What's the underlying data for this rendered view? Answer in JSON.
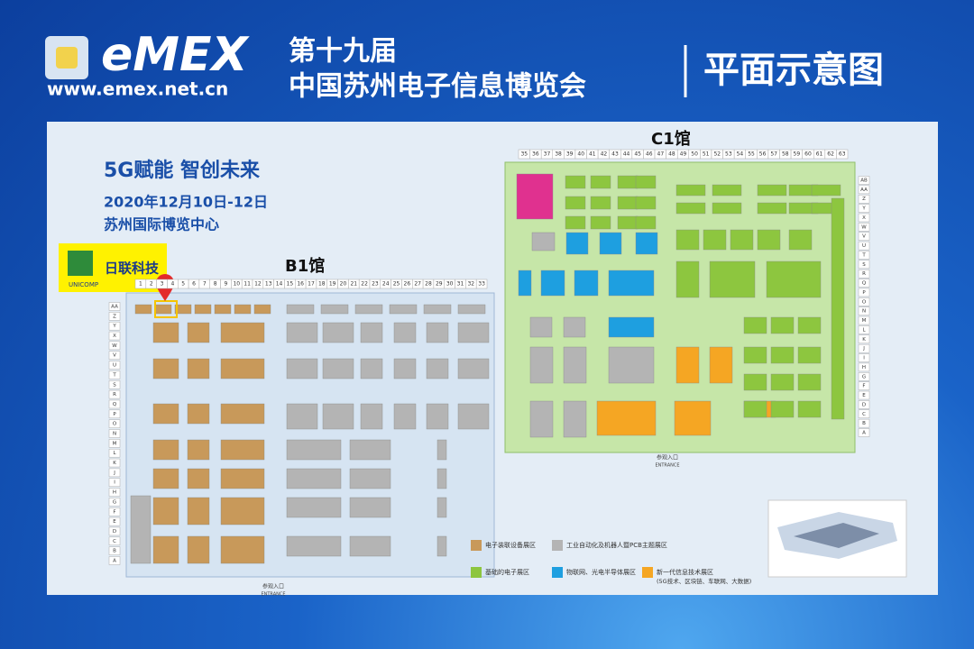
{
  "header": {
    "brand": "eMEX",
    "url": "www.emex.net.cn",
    "edition": "第十九届",
    "event": "中国苏州电子信息博览会",
    "page_title": "平面示意图"
  },
  "intro": {
    "slogan": "5G赋能 智创未来",
    "dates": "2020年12月10日-12日",
    "venue": "苏州国际博览中心"
  },
  "exhibitor": {
    "name": "日联科技",
    "logo_text": "UNICOMP"
  },
  "halls": [
    {
      "name": "B1馆",
      "entrance": "参观入口",
      "entrance_en": "ENTRANCE",
      "columns": [
        1,
        2,
        3,
        4,
        5,
        6,
        7,
        8,
        9,
        10,
        11,
        12,
        13,
        14,
        15,
        16,
        17,
        18,
        19,
        20,
        21,
        22,
        23,
        24,
        25,
        26,
        27,
        28,
        29,
        30,
        31,
        32,
        33
      ],
      "rows": [
        "AA",
        "Z",
        "Y",
        "X",
        "W",
        "V",
        "U",
        "T",
        "S",
        "R",
        "Q",
        "P",
        "O",
        "N",
        "M",
        "L",
        "K",
        "J",
        "I",
        "H",
        "G",
        "F",
        "E",
        "D",
        "C",
        "B",
        "A"
      ]
    },
    {
      "name": "C1馆",
      "entrance": "参观入口",
      "entrance_en": "ENTRANCE",
      "columns": [
        35,
        36,
        37,
        38,
        39,
        40,
        41,
        42,
        43,
        44,
        45,
        46,
        47,
        48,
        49,
        50,
        51,
        52,
        53,
        54,
        55,
        56,
        57,
        58,
        59,
        60,
        61,
        62,
        63
      ],
      "rows": [
        "AB",
        "AA",
        "Z",
        "Y",
        "X",
        "W",
        "V",
        "U",
        "T",
        "S",
        "R",
        "Q",
        "P",
        "O",
        "N",
        "M",
        "L",
        "K",
        "J",
        "I",
        "H",
        "G",
        "F",
        "E",
        "D",
        "C",
        "B",
        "A"
      ]
    }
  ],
  "legend": [
    {
      "label": "电子装联设备展区",
      "color": "#c8995a"
    },
    {
      "label": "工业自动化及机器人暨PCB主题展区",
      "color": "#b4b4b4"
    },
    {
      "label": "基础的电子展区",
      "color": "#8dc63f"
    },
    {
      "label": "物联网、光电半导体展区",
      "color": "#1e9fe0"
    },
    {
      "label": "新一代信息技术展区",
      "note": "(5G技术、区块链、车联网、大数据)",
      "color": "#f5a623"
    }
  ]
}
